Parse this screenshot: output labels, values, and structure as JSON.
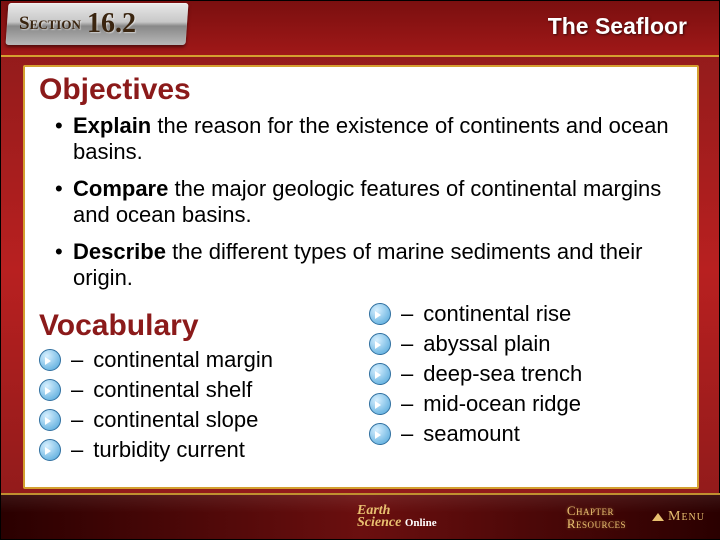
{
  "colors": {
    "accent_red": "#8b1a1a",
    "gold_border": "#d4a030",
    "footer_gold": "#e8c070",
    "white_panel": "#ffffff"
  },
  "header": {
    "section_label": "Section ",
    "section_number": "16.2",
    "title": "The Seafloor"
  },
  "objectives": {
    "heading": "Objectives",
    "items": [
      {
        "verb": "Explain",
        "rest": " the reason for the existence of continents and ocean basins."
      },
      {
        "verb": "Compare",
        "rest": " the major geologic features of continental margins and ocean basins."
      },
      {
        "verb": "Describe",
        "rest": " the different types of marine sediments and their origin."
      }
    ]
  },
  "vocabulary": {
    "heading": "Vocabulary",
    "left": [
      "continental margin",
      "continental shelf",
      "continental slope",
      "turbidity current"
    ],
    "right": [
      "continental rise",
      "abyssal plain",
      "deep-sea trench",
      "mid-ocean ridge",
      "seamount"
    ]
  },
  "footer": {
    "logo_line1": "Earth",
    "logo_line2": "Science",
    "logo_online": "Online",
    "chapter_btn_l1": "Chapter",
    "chapter_btn_l2": "Resources",
    "menu": "Menu"
  }
}
